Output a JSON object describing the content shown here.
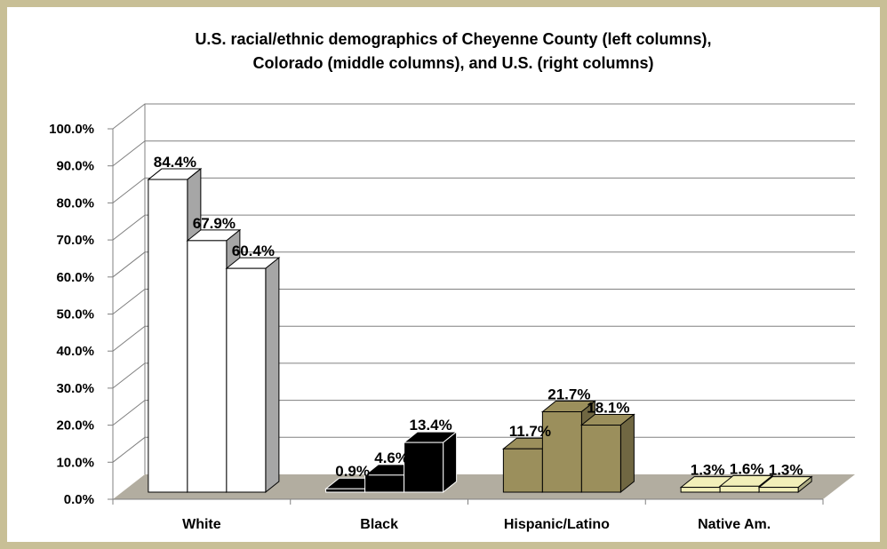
{
  "chart_data": {
    "type": "bar",
    "title": "U.S. racial/ethnic demographics of Cheyenne County (left columns), Colorado (middle columns), and U.S. (right columns)",
    "title_lines": [
      "U.S. racial/ethnic demographics of Cheyenne County (left columns),",
      "Colorado (middle columns), and U.S. (right columns)"
    ],
    "categories": [
      "White",
      "Black",
      "Hispanic/Latino",
      "Native Am."
    ],
    "series": [
      {
        "values": [
          84.4,
          0.9,
          11.7,
          1.3
        ]
      },
      {
        "values": [
          67.9,
          4.6,
          21.7,
          1.6
        ]
      },
      {
        "values": [
          60.4,
          13.4,
          18.1,
          1.3
        ]
      }
    ],
    "data_labels": [
      [
        "84.4%",
        "67.9%",
        "60.4%"
      ],
      [
        "0.9%",
        "4.6%",
        "13.4%"
      ],
      [
        "11.7%",
        "21.7%",
        "18.1%"
      ],
      [
        "1.3%",
        "1.6%",
        "1.3%"
      ]
    ],
    "category_colors": [
      "#ffffff",
      "#000000",
      "#9b8f5c",
      "#f2efb9"
    ],
    "ylim": [
      0,
      100
    ],
    "y_ticks": [
      "0.0%",
      "10.0%",
      "20.0%",
      "30.0%",
      "40.0%",
      "50.0%",
      "60.0%",
      "70.0%",
      "80.0%",
      "90.0%",
      "100.0%"
    ],
    "xlabel": "",
    "ylabel": "",
    "grid": true,
    "style": "3d-clustered-column",
    "frame_color": "#c8bf96",
    "floor_color": "#b2ada0"
  }
}
